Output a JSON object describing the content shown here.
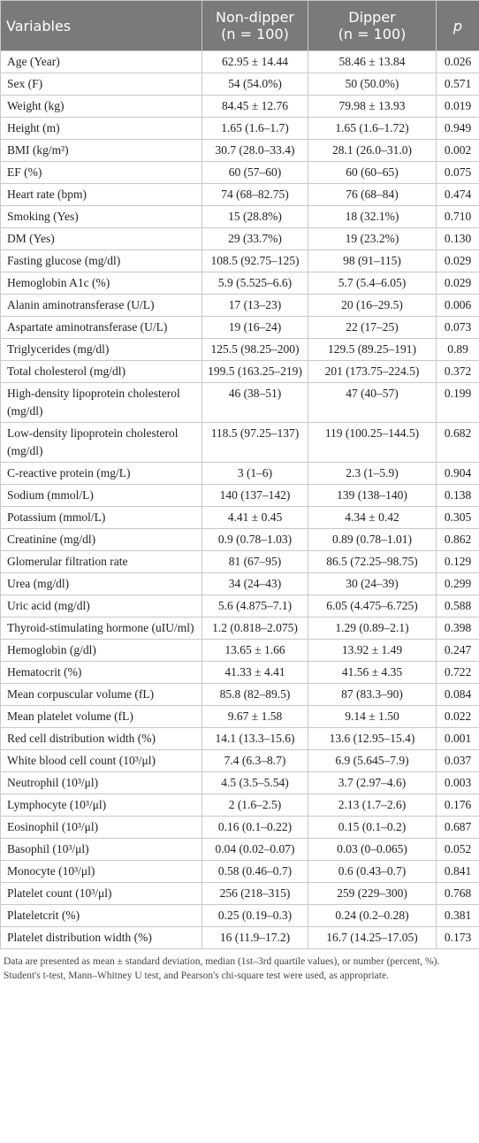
{
  "table": {
    "header": [
      [
        "Variables"
      ],
      [
        "Non-dipper",
        "(n = 100)"
      ],
      [
        "Dipper",
        "(n = 100)"
      ],
      [
        "p"
      ]
    ],
    "rows": [
      [
        "Age (Year)",
        "62.95 ± 14.44",
        "58.46 ± 13.84",
        "0.026"
      ],
      [
        "Sex (F)",
        "54 (54.0%)",
        "50 (50.0%)",
        "0.571"
      ],
      [
        "Weight (kg)",
        "84.45 ± 12.76",
        "79.98 ± 13.93",
        "0.019"
      ],
      [
        "Height (m)",
        "1.65 (1.6–1.7)",
        "1.65 (1.6–1.72)",
        "0.949"
      ],
      [
        "BMI (kg/m²)",
        "30.7 (28.0–33.4)",
        "28.1 (26.0–31.0)",
        "0.002"
      ],
      [
        "EF (%)",
        "60 (57–60)",
        "60 (60–65)",
        "0.075"
      ],
      [
        "Heart rate (bpm)",
        "74 (68–82.75)",
        "76 (68–84)",
        "0.474"
      ],
      [
        "Smoking (Yes)",
        "15 (28.8%)",
        "18 (32.1%)",
        "0.710"
      ],
      [
        "DM (Yes)",
        "29 (33.7%)",
        "19 (23.2%)",
        "0.130"
      ],
      [
        "Fasting glucose (mg/dl)",
        "108.5 (92.75–125)",
        "98 (91–115)",
        "0.029"
      ],
      [
        "Hemoglobin A1c (%)",
        "5.9 (5.525–6.6)",
        "5.7 (5.4–6.05)",
        "0.029"
      ],
      [
        "Alanin aminotransferase (U/L)",
        "17 (13–23)",
        "20 (16–29.5)",
        "0.006"
      ],
      [
        "Aspartate aminotransferase (U/L)",
        "19 (16–24)",
        "22 (17–25)",
        "0.073"
      ],
      [
        "Triglycerides (mg/dl)",
        "125.5 (98.25–200)",
        "129.5 (89.25–191)",
        "0.89"
      ],
      [
        "Total cholesterol (mg/dl)",
        "199.5 (163.25–219)",
        "201 (173.75–224.5)",
        "0.372"
      ],
      [
        "High-density lipoprotein cholesterol (mg/dl)",
        "46 (38–51)",
        "47 (40–57)",
        "0.199"
      ],
      [
        "Low-density lipoprotein cholesterol (mg/dl)",
        "118.5 (97.25–137)",
        "119 (100.25–144.5)",
        "0.682"
      ],
      [
        "C-reactive protein (mg/L)",
        "3 (1–6)",
        "2.3 (1–5.9)",
        "0.904"
      ],
      [
        "Sodium (mmol/L)",
        "140 (137–142)",
        "139 (138–140)",
        "0.138"
      ],
      [
        "Potassium (mmol/L)",
        "4.41 ± 0.45",
        "4.34 ± 0.42",
        "0.305"
      ],
      [
        "Creatinine (mg/dl)",
        "0.9 (0.78–1.03)",
        "0.89 (0.78–1.01)",
        "0.862"
      ],
      [
        "Glomerular filtration rate",
        "81 (67–95)",
        "86.5 (72.25–98.75)",
        "0.129"
      ],
      [
        "Urea (mg/dl)",
        "34 (24–43)",
        "30 (24–39)",
        "0.299"
      ],
      [
        "Uric acid (mg/dl)",
        "5.6 (4.875–7.1)",
        "6.05 (4.475–6.725)",
        "0.588"
      ],
      [
        "Thyroid-stimulating hormone (uIU/ml)",
        "1.2 (0.818–2.075)",
        "1.29 (0.89–2.1)",
        "0.398"
      ],
      [
        "Hemoglobin (g/dl)",
        "13.65 ± 1.66",
        "13.92 ± 1.49",
        "0.247"
      ],
      [
        "Hematocrit (%)",
        "41.33 ± 4.41",
        "41.56 ± 4.35",
        "0.722"
      ],
      [
        "Mean corpuscular volume (fL)",
        "85.8 (82–89.5)",
        "87 (83.3–90)",
        "0.084"
      ],
      [
        "Mean platelet volume (fL)",
        "9.67 ± 1.58",
        "9.14 ± 1.50",
        "0.022"
      ],
      [
        "Red cell distribution width (%)",
        "14.1 (13.3–15.6)",
        "13.6 (12.95–15.4)",
        "0.001"
      ],
      [
        "White blood cell count (10³/μl)",
        "7.4 (6.3–8.7)",
        "6.9 (5.645–7.9)",
        "0.037"
      ],
      [
        "Neutrophil (10³/μl)",
        "4.5 (3.5–5.54)",
        "3.7 (2.97–4.6)",
        "0.003"
      ],
      [
        "Lymphocyte (10³/μl)",
        "2 (1.6–2.5)",
        "2.13 (1.7–2.6)",
        "0.176"
      ],
      [
        "Eosinophil (10³/μl)",
        "0.16 (0.1–0.22)",
        "0.15 (0.1–0.2)",
        "0.687"
      ],
      [
        "Basophil (10³/μl)",
        "0.04 (0.02–0.07)",
        "0.03 (0–0.065)",
        "0.052"
      ],
      [
        "Monocyte (10³/μl)",
        "0.58 (0.46–0.7)",
        "0.6 (0.43–0.7)",
        "0.841"
      ],
      [
        "Platelet count (10³/μl)",
        "256 (218–315)",
        "259 (229–300)",
        "0.768"
      ],
      [
        "Plateletcrit (%)",
        "0.25 (0.19–0.3)",
        "0.24 (0.2–0.28)",
        "0.381"
      ],
      [
        "Platelet distribution width (%)",
        "16 (11.9–17.2)",
        "16.7 (14.25–17.05)",
        "0.173"
      ]
    ]
  },
  "footnote": "Data are presented as mean ± standard deviation, median (1st–3rd quartile values), or number (percent, %). Student's t-test, Mann–Whitney U test, and Pearson's chi-square test were used, as appropriate."
}
